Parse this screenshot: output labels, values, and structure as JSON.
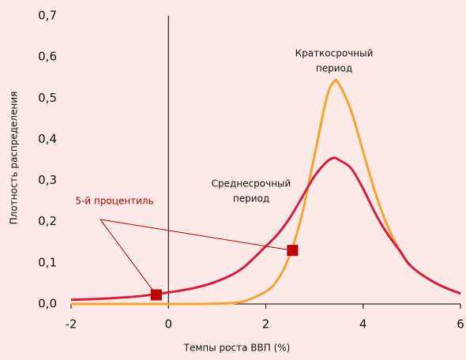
{
  "chart_data": {
    "type": "line",
    "xlabel": "Темпы роста ВВП (%)",
    "ylabel": "Плотность распределения",
    "x": [
      -2,
      -1.5,
      -1,
      -0.5,
      0,
      0.5,
      1,
      1.5,
      2,
      2.25,
      2.5,
      2.75,
      3,
      3.25,
      3.4,
      3.5,
      3.75,
      4,
      4.25,
      4.5,
      4.75,
      5,
      5.5,
      6
    ],
    "series": [
      {
        "label": [
          "Краткосрочный",
          "период"
        ],
        "color": "#f7a530",
        "values": [
          0,
          0,
          0,
          0,
          0,
          0,
          0.001,
          0.005,
          0.03,
          0.06,
          0.12,
          0.22,
          0.36,
          0.5,
          0.54,
          0.535,
          0.47,
          0.37,
          0.27,
          0.19,
          0.13,
          0.09,
          0.05,
          0.025
        ]
      },
      {
        "label": [
          "Среднесрочный",
          "период"
        ],
        "color": "#d81e3c",
        "values": [
          0.01,
          0.012,
          0.015,
          0.02,
          0.028,
          0.038,
          0.055,
          0.085,
          0.14,
          0.17,
          0.21,
          0.26,
          0.31,
          0.345,
          0.355,
          0.35,
          0.33,
          0.28,
          0.22,
          0.17,
          0.13,
          0.09,
          0.05,
          0.025
        ]
      }
    ],
    "markers": {
      "x": [
        -0.25,
        2.55
      ],
      "y": [
        0.022,
        0.13
      ],
      "color": "#c00000",
      "annotation": "5-й процентиль"
    },
    "xlim": [
      -2,
      6
    ],
    "xticks": [
      -2,
      0,
      2,
      4,
      6
    ],
    "ylim": [
      0,
      0.7
    ],
    "yticks": [
      {
        "value": 0,
        "label": "0,0"
      },
      {
        "value": 0.1,
        "label": "0,1"
      },
      {
        "value": 0.2,
        "label": "0,2"
      },
      {
        "value": 0.3,
        "label": "0,3"
      },
      {
        "value": 0.4,
        "label": "0,4"
      },
      {
        "value": 0.5,
        "label": "0,5"
      },
      {
        "value": 0.6,
        "label": "0,6"
      },
      {
        "value": 0.7,
        "label": "0,7"
      }
    ]
  }
}
